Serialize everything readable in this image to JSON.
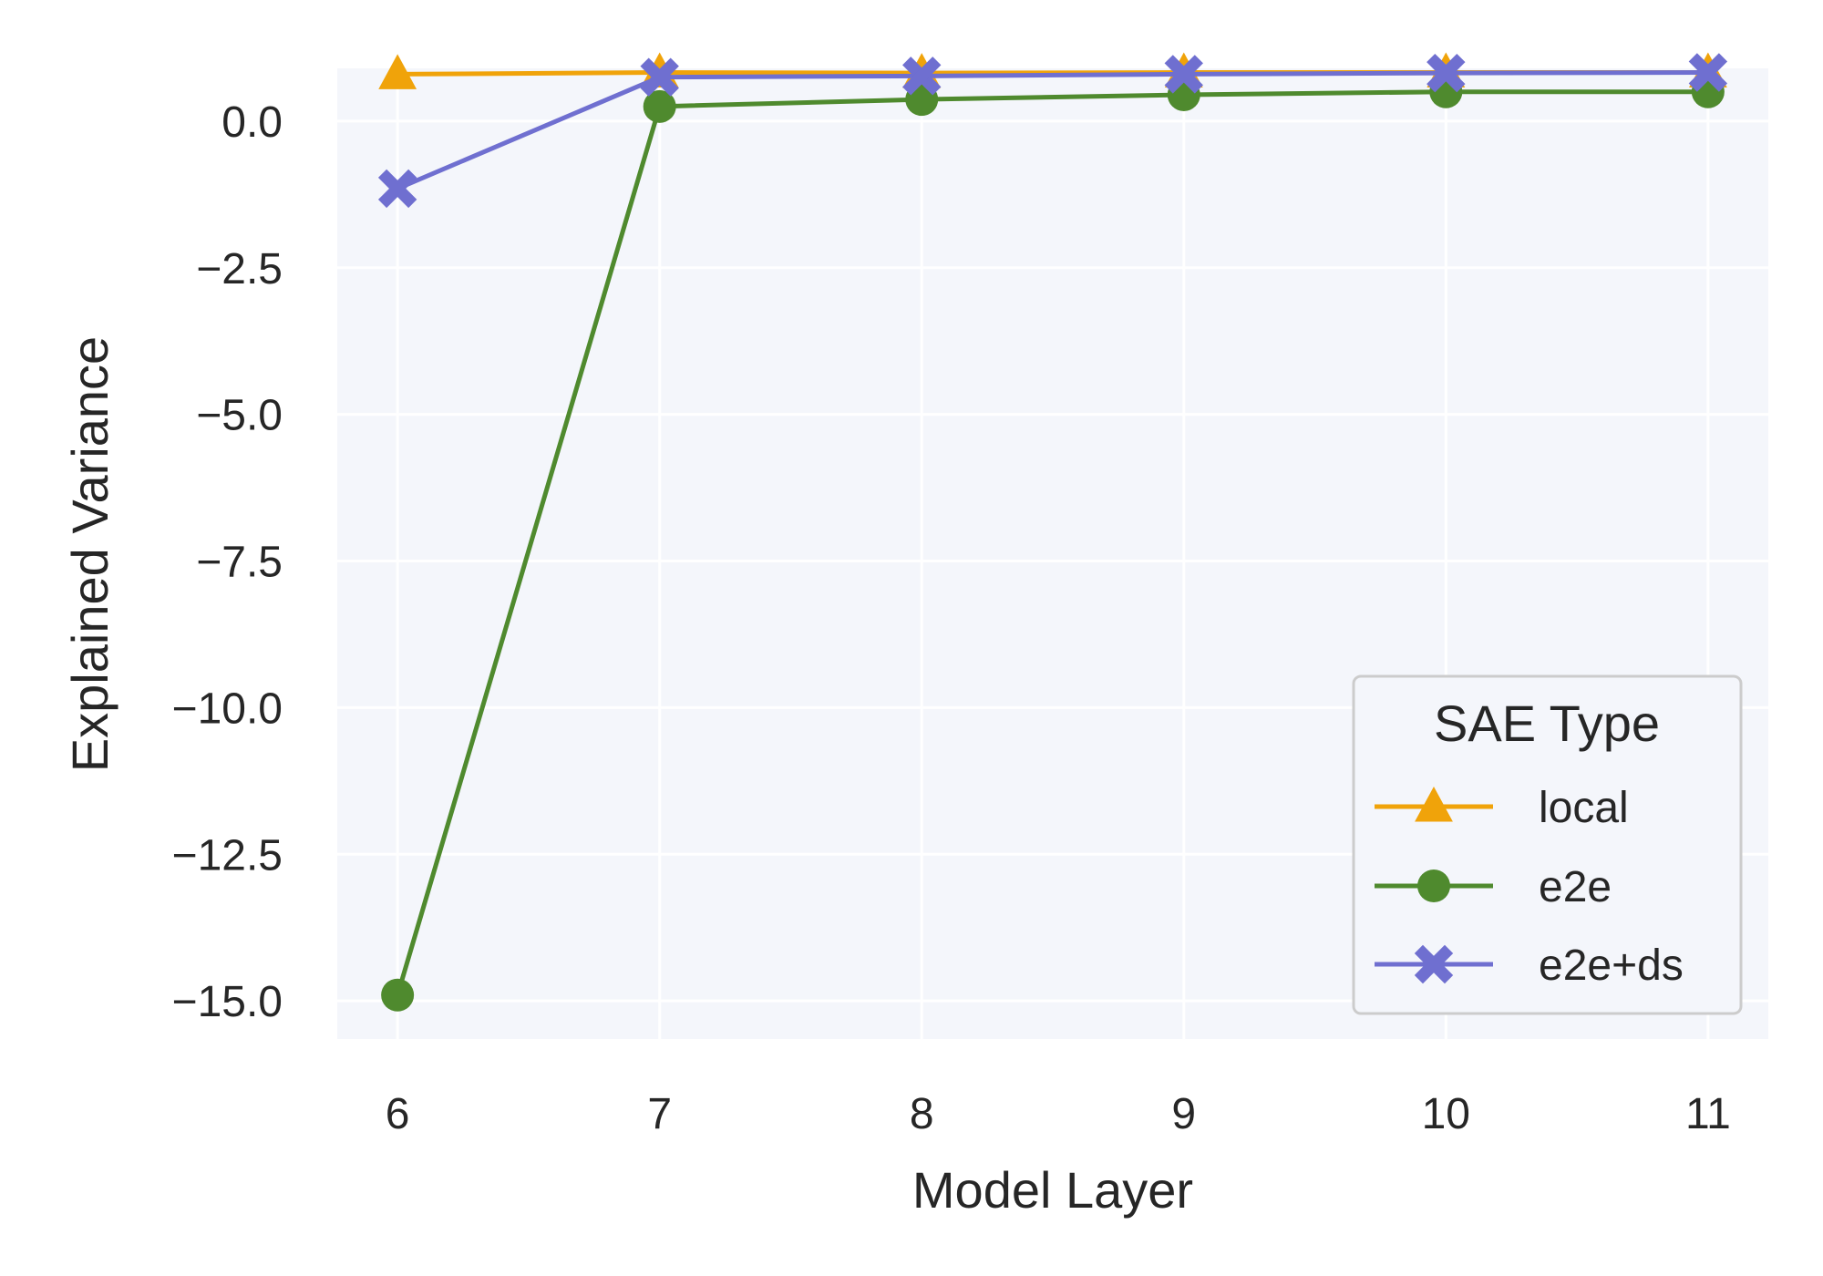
{
  "chart_data": {
    "type": "line",
    "xlabel": "Model Layer",
    "ylabel": "Explained Variance",
    "x": [
      6,
      7,
      8,
      9,
      10,
      11
    ],
    "xlim": [
      5.77,
      11.23
    ],
    "ylim": [
      -15.65,
      0.9
    ],
    "yticks": [
      0.0,
      -2.5,
      -5.0,
      -7.5,
      -10.0,
      -12.5,
      -15.0
    ],
    "ytick_labels": [
      "0.0",
      "−2.5",
      "−5.0",
      "−7.5",
      "−10.0",
      "−12.5",
      "−15.0"
    ],
    "xtick_labels": [
      "6",
      "7",
      "8",
      "9",
      "10",
      "11"
    ],
    "grid": true,
    "background": "#f4f6fb",
    "legend": {
      "title": "SAE Type",
      "placement": "lower-right"
    },
    "series": [
      {
        "name": "local",
        "values": [
          0.8,
          0.83,
          0.82,
          0.83,
          0.83,
          0.83
        ],
        "color": "#f0a30a",
        "marker": "triangle"
      },
      {
        "name": "e2e",
        "values": [
          -14.9,
          0.25,
          0.37,
          0.45,
          0.5,
          0.5
        ],
        "color": "#4f8a2e",
        "marker": "circle"
      },
      {
        "name": "e2e+ds",
        "values": [
          -1.15,
          0.75,
          0.77,
          0.8,
          0.82,
          0.83
        ],
        "color": "#6f6fd0",
        "marker": "x"
      }
    ]
  }
}
